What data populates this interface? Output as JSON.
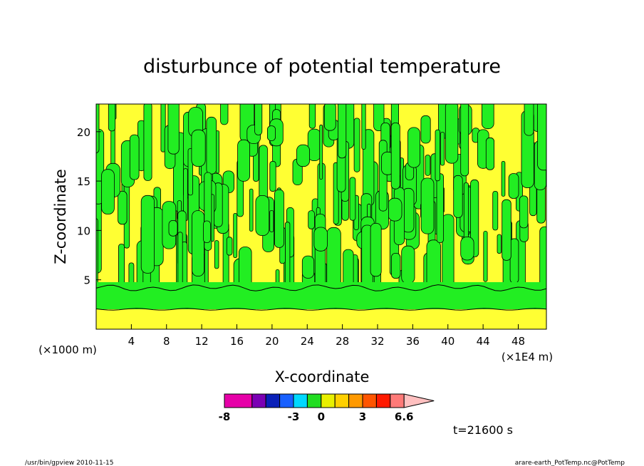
{
  "chart_data": {
    "type": "heatmap",
    "title": "disturbunce of potential temperature",
    "xlabel": "X-coordinate",
    "ylabel": "Z-coordinate",
    "x_unit_left": "(×1000 m)",
    "x_unit_right": "(×1E4 m)",
    "xlim": [
      0,
      51.2
    ],
    "ylim": [
      0,
      22.8
    ],
    "x_ticks": [
      4,
      8,
      12,
      16,
      20,
      24,
      28,
      32,
      36,
      40,
      44,
      48
    ],
    "y_ticks": [
      5,
      10,
      15,
      20
    ],
    "colorbar": {
      "tick_labels": [
        "-8",
        "-3",
        "0",
        "3",
        "6.6"
      ],
      "colors": [
        "#e600a8",
        "#e600a8",
        "#7b00b4",
        "#0a20b8",
        "#1860ff",
        "#00d8ff",
        "#22dd22",
        "#e8f000",
        "#ffd000",
        "#ff9900",
        "#ff5500",
        "#ff1a00",
        "#ff7a78",
        "#ffc0c0"
      ]
    },
    "fields": {
      "positive_color": "#ffff33",
      "negative_color": "#22ee22",
      "contour_color": "#000000"
    },
    "time_label": "t=21600 s"
  },
  "footer": {
    "left": "/usr/bin/gpview  2010-11-15",
    "right": "arare-earth_PotTemp.nc@PotTemp"
  }
}
